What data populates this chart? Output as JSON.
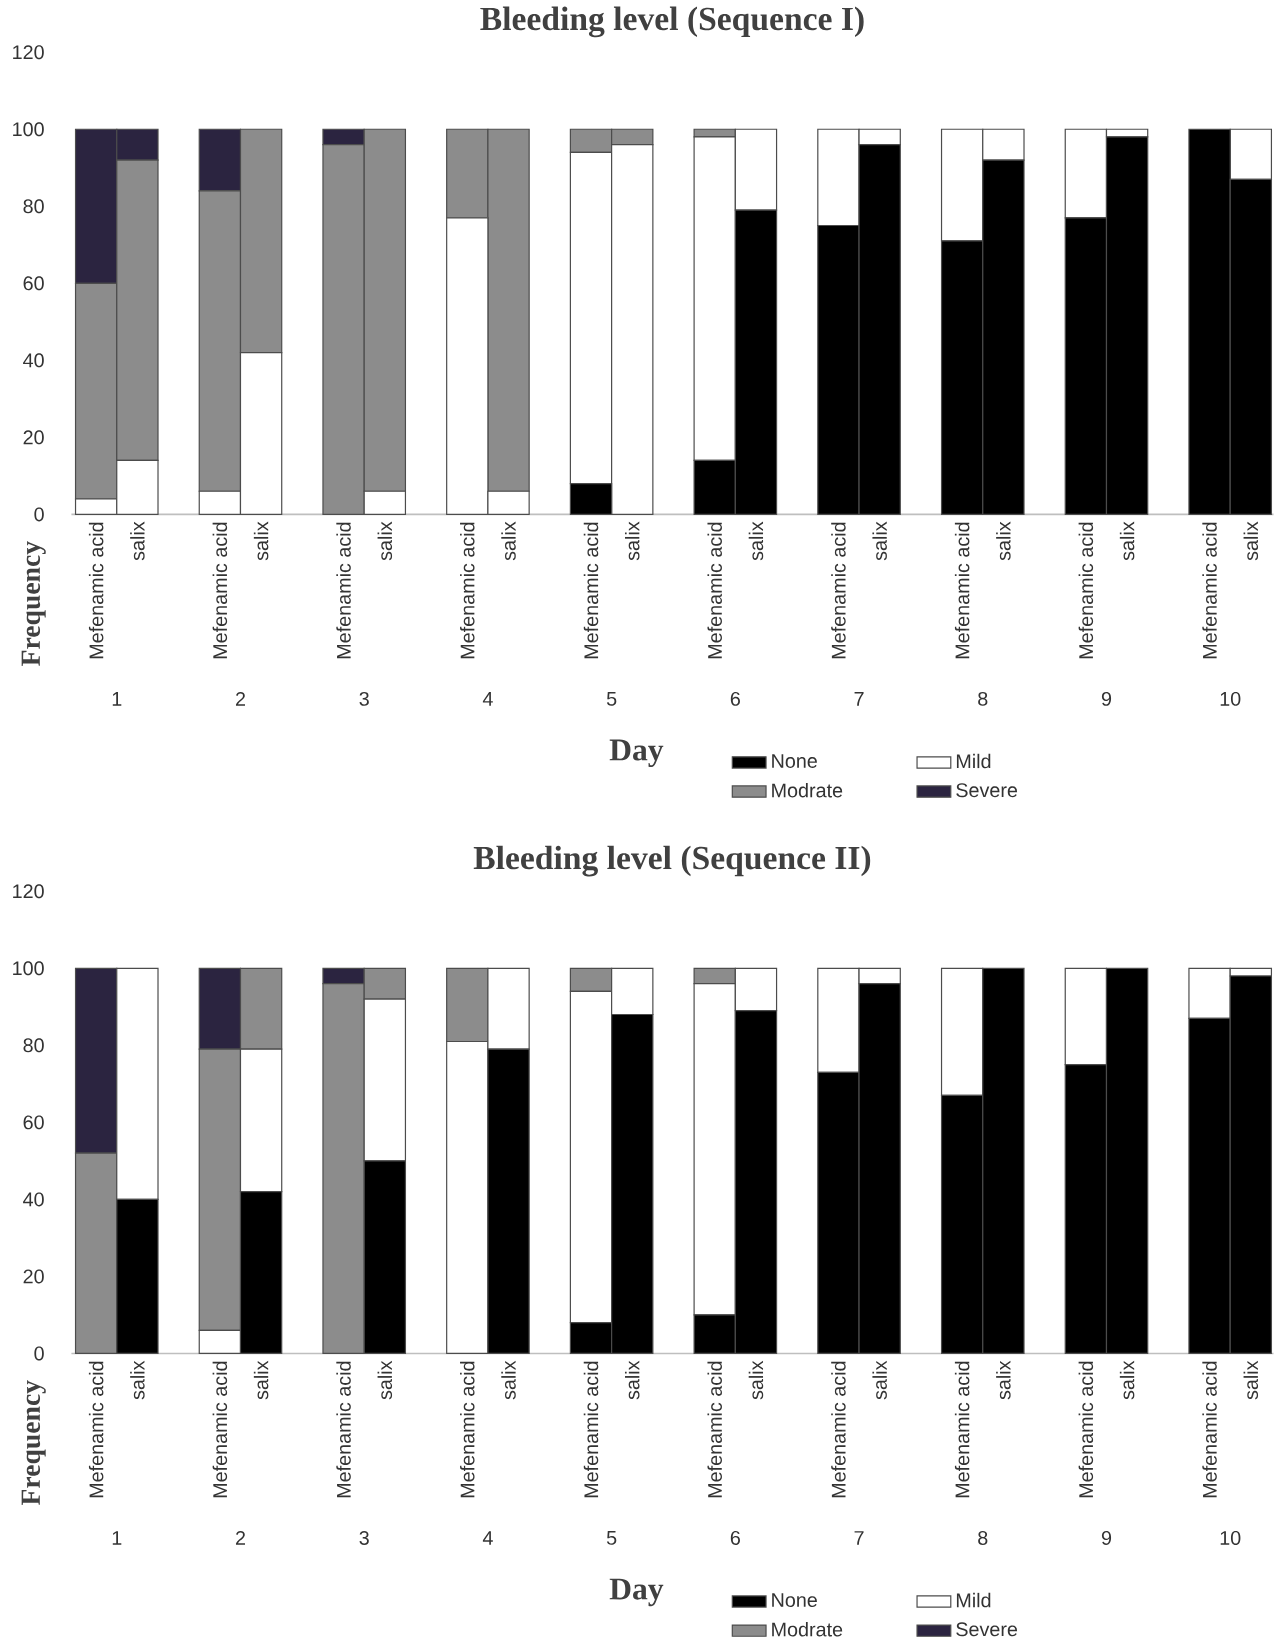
{
  "chart_data": [
    {
      "type": "bar",
      "title": "Bleeding level (Sequence I)",
      "xlabel": "Day",
      "ylabel": "Frequency",
      "stacked": true,
      "legend": "bottom",
      "categories": [
        "Mefenamic acid",
        "salix",
        "Mefenamic acid",
        "salix",
        "Mefenamic acid",
        "salix",
        "Mefenamic acid",
        "salix",
        "Mefenamic acid",
        "salix",
        "Mefenamic acid",
        "salix",
        "Mefenamic acid",
        "salix",
        "Mefenamic acid",
        "salix",
        "Mefenamic acid",
        "salix",
        "Mefenamic acid",
        "salix"
      ],
      "annotations": [
        "1",
        "2",
        "3",
        "4",
        "5",
        "6",
        "7",
        "8",
        "9",
        "10"
      ],
      "ylim": [
        0,
        120
      ],
      "yticks": [
        0,
        20,
        40,
        60,
        80,
        100,
        120
      ],
      "series": [
        {
          "name": "None",
          "color": "#000000",
          "values": [
            0,
            0,
            0,
            0,
            0,
            0,
            0,
            0,
            8,
            0,
            14,
            79,
            75,
            96,
            71,
            92,
            77,
            98,
            100,
            87
          ]
        },
        {
          "name": "Mild",
          "color": "#ffffff",
          "values": [
            4,
            14,
            6,
            42,
            0,
            6,
            77,
            6,
            86,
            96,
            84,
            21,
            25,
            4,
            29,
            8,
            23,
            2,
            0,
            13
          ]
        },
        {
          "name": "Modrate",
          "color": "#8c8c8c",
          "values": [
            56,
            78,
            78,
            58,
            96,
            94,
            23,
            94,
            6,
            4,
            2,
            0,
            0,
            0,
            0,
            0,
            0,
            0,
            0,
            0
          ]
        },
        {
          "name": "Severe",
          "color": "#2b2440",
          "values": [
            40,
            8,
            16,
            0,
            4,
            0,
            0,
            0,
            0,
            0,
            0,
            0,
            0,
            0,
            0,
            0,
            0,
            0,
            0,
            0
          ]
        }
      ]
    },
    {
      "type": "bar",
      "title": "Bleeding level (Sequence II)",
      "xlabel": "Day",
      "ylabel": "Frequency",
      "stacked": true,
      "legend": "bottom",
      "categories": [
        "Mefenamic acid",
        "salix",
        "Mefenamic acid",
        "salix",
        "Mefenamic acid",
        "salix",
        "Mefenamic acid",
        "salix",
        "Mefenamic acid",
        "salix",
        "Mefenamic acid",
        "salix",
        "Mefenamic acid",
        "salix",
        "Mefenamic acid",
        "salix",
        "Mefenamic acid",
        "salix",
        "Mefenamic acid",
        "salix"
      ],
      "annotations": [
        "1",
        "2",
        "3",
        "4",
        "5",
        "6",
        "7",
        "8",
        "9",
        "10"
      ],
      "ylim": [
        0,
        120
      ],
      "yticks": [
        0,
        20,
        40,
        60,
        80,
        100,
        120
      ],
      "series": [
        {
          "name": "None",
          "color": "#000000",
          "values": [
            0,
            40,
            0,
            42,
            0,
            50,
            0,
            79,
            8,
            88,
            10,
            89,
            73,
            96,
            67,
            100,
            75,
            100,
            87,
            98
          ]
        },
        {
          "name": "Mild",
          "color": "#ffffff",
          "values": [
            0,
            60,
            6,
            37,
            0,
            42,
            81,
            21,
            86,
            12,
            86,
            11,
            27,
            4,
            33,
            0,
            25,
            0,
            13,
            2
          ]
        },
        {
          "name": "Modrate",
          "color": "#8c8c8c",
          "values": [
            52,
            0,
            73,
            21,
            96,
            8,
            19,
            0,
            6,
            0,
            4,
            0,
            0,
            0,
            0,
            0,
            0,
            0,
            0,
            0
          ]
        },
        {
          "name": "Severe",
          "color": "#2b2440",
          "values": [
            48,
            0,
            21,
            0,
            4,
            0,
            0,
            0,
            0,
            0,
            0,
            0,
            0,
            0,
            0,
            0,
            0,
            0,
            0,
            0
          ]
        }
      ]
    }
  ]
}
